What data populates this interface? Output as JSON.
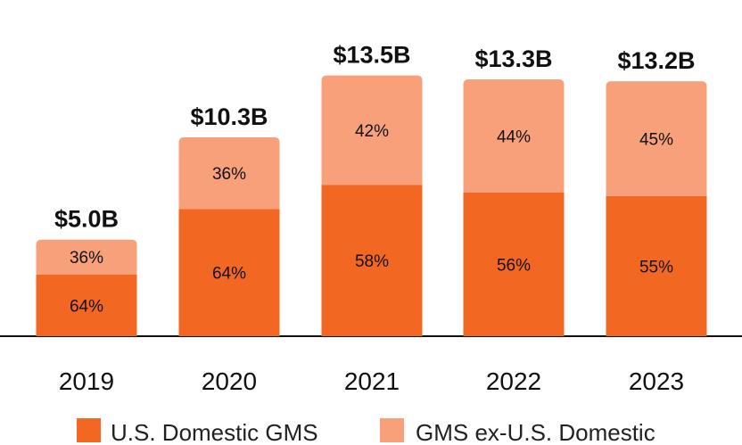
{
  "chart_data": {
    "type": "bar",
    "stacked": true,
    "categories": [
      "2019",
      "2020",
      "2021",
      "2022",
      "2023"
    ],
    "totals": [
      5.0,
      10.3,
      13.5,
      13.3,
      13.2
    ],
    "total_labels": [
      "$5.0B",
      "$10.3B",
      "$13.5B",
      "$13.3B",
      "$13.2B"
    ],
    "ylim": [
      0,
      14.5
    ],
    "series": [
      {
        "name": "U.S. Domestic GMS",
        "percent_values": [
          64,
          64,
          58,
          56,
          55
        ],
        "labels": [
          "64%",
          "64%",
          "58%",
          "56%",
          "55%"
        ],
        "color": "#F26722"
      },
      {
        "name": "GMS ex-U.S. Domestic",
        "percent_values": [
          36,
          36,
          42,
          44,
          45
        ],
        "labels": [
          "36%",
          "36%",
          "42%",
          "44%",
          "45%"
        ],
        "color": "#F7A07A"
      }
    ],
    "title": "",
    "xlabel": "",
    "ylabel": "",
    "grid": false,
    "legend_position": "bottom"
  },
  "colors": {
    "axis": "#111111"
  }
}
